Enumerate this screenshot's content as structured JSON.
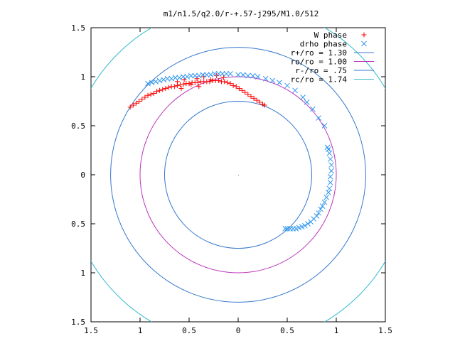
{
  "chart_data": {
    "type": "scatter",
    "title": "m1/n1.5/q2.0/r-+.57-j295/M1.0/512",
    "xlabel": "",
    "ylabel": "",
    "xlim": [
      -1.5,
      1.5
    ],
    "ylim": [
      -1.5,
      1.5
    ],
    "x_ticks": [
      -1.5,
      -1,
      -0.5,
      0,
      0.5,
      1,
      1.5
    ],
    "y_ticks": [
      -1.5,
      -1,
      -0.5,
      0,
      0.5,
      1,
      1.5
    ],
    "x_tick_labels": [
      "1.5",
      "1",
      "0.5",
      "0",
      "0.5",
      "1",
      "1.5"
    ],
    "y_tick_labels": [
      "1.5",
      "1",
      "0.5",
      "0",
      "0.5",
      "1",
      "1.5"
    ],
    "grid": false,
    "legend_position": "top-right",
    "circles": [
      {
        "label": "r+/ro = 1.30",
        "radius": 1.3,
        "color": "#3377cc"
      },
      {
        "label": "ro/ro = 1.00",
        "radius": 1.0,
        "color": "#bb33bb"
      },
      {
        "label": "r-/ro = .75",
        "radius": 0.75,
        "color": "#3377cc"
      },
      {
        "label": "rc/ro = 1.74",
        "radius": 1.74,
        "color": "#33bbcc"
      }
    ],
    "series": [
      {
        "name": "W phase",
        "marker": "+",
        "color": "#ff0000",
        "points": [
          [
            -1.1,
            0.69
          ],
          [
            -1.07,
            0.71
          ],
          [
            -1.04,
            0.73
          ],
          [
            -1.01,
            0.75
          ],
          [
            -0.98,
            0.77
          ],
          [
            -0.95,
            0.79
          ],
          [
            -0.92,
            0.81
          ],
          [
            -0.89,
            0.82
          ],
          [
            -0.86,
            0.83
          ],
          [
            -0.83,
            0.85
          ],
          [
            -0.8,
            0.86
          ],
          [
            -0.77,
            0.87
          ],
          [
            -0.74,
            0.88
          ],
          [
            -0.71,
            0.89
          ],
          [
            -0.68,
            0.9
          ],
          [
            -0.65,
            0.9
          ],
          [
            -0.62,
            0.91
          ],
          [
            -0.59,
            0.92
          ],
          [
            -0.56,
            0.92
          ],
          [
            -0.53,
            0.93
          ],
          [
            -0.5,
            0.93
          ],
          [
            -0.47,
            0.94
          ],
          [
            -0.44,
            0.94
          ],
          [
            -0.41,
            0.94
          ],
          [
            -0.38,
            0.95
          ],
          [
            -0.35,
            0.95
          ],
          [
            -0.32,
            0.95
          ],
          [
            -0.29,
            0.95
          ],
          [
            -0.26,
            0.96
          ],
          [
            -0.23,
            0.96
          ],
          [
            -0.2,
            0.96
          ],
          [
            -0.17,
            0.95
          ],
          [
            -0.14,
            0.95
          ],
          [
            -0.11,
            0.94
          ],
          [
            -0.08,
            0.93
          ],
          [
            -0.05,
            0.91
          ],
          [
            -0.02,
            0.9
          ],
          [
            0.01,
            0.88
          ],
          [
            0.04,
            0.86
          ],
          [
            0.07,
            0.84
          ],
          [
            0.1,
            0.82
          ],
          [
            0.13,
            0.8
          ],
          [
            0.16,
            0.78
          ],
          [
            0.19,
            0.76
          ],
          [
            0.22,
            0.74
          ],
          [
            0.25,
            0.72
          ],
          [
            0.27,
            0.71
          ],
          [
            -0.62,
            0.95
          ],
          [
            -0.55,
            0.97
          ],
          [
            -0.48,
            0.92
          ],
          [
            -0.42,
            0.98
          ],
          [
            -0.35,
            1.0
          ],
          [
            -0.28,
            0.97
          ],
          [
            -0.22,
            1.01
          ],
          [
            -0.15,
            0.99
          ],
          [
            -0.4,
            0.9
          ],
          [
            -0.58,
            0.88
          ]
        ]
      },
      {
        "name": "drho phase",
        "marker": "x",
        "color": "#3399ee",
        "points": [
          [
            -0.92,
            0.93
          ],
          [
            -0.88,
            0.94
          ],
          [
            -0.84,
            0.95
          ],
          [
            -0.8,
            0.96
          ],
          [
            -0.76,
            0.97
          ],
          [
            -0.72,
            0.98
          ],
          [
            -0.68,
            0.98
          ],
          [
            -0.64,
            0.99
          ],
          [
            -0.6,
            0.99
          ],
          [
            -0.56,
            1.0
          ],
          [
            -0.52,
            1.0
          ],
          [
            -0.48,
            1.01
          ],
          [
            -0.44,
            1.01
          ],
          [
            -0.4,
            1.01
          ],
          [
            -0.36,
            1.02
          ],
          [
            -0.32,
            1.02
          ],
          [
            -0.28,
            1.02
          ],
          [
            -0.24,
            1.03
          ],
          [
            -0.2,
            1.03
          ],
          [
            -0.16,
            1.03
          ],
          [
            -0.12,
            1.03
          ],
          [
            -0.08,
            1.03
          ],
          [
            0.0,
            1.02
          ],
          [
            0.05,
            1.02
          ],
          [
            0.1,
            1.01
          ],
          [
            0.15,
            1.01
          ],
          [
            0.2,
            1.0
          ],
          [
            0.28,
            0.98
          ],
          [
            0.35,
            0.96
          ],
          [
            0.42,
            0.94
          ],
          [
            0.5,
            0.91
          ],
          [
            0.58,
            0.86
          ],
          [
            0.66,
            0.79
          ],
          [
            0.7,
            0.74
          ],
          [
            0.76,
            0.67
          ],
          [
            0.82,
            0.58
          ],
          [
            0.88,
            0.5
          ],
          [
            0.91,
            0.28
          ],
          [
            0.92,
            0.26
          ],
          [
            0.93,
            0.22
          ],
          [
            0.94,
            0.16
          ],
          [
            0.95,
            0.1
          ],
          [
            0.95,
            0.04
          ],
          [
            0.94,
            -0.02
          ],
          [
            0.94,
            -0.08
          ],
          [
            0.93,
            -0.14
          ],
          [
            0.92,
            -0.18
          ],
          [
            0.9,
            -0.23
          ],
          [
            0.88,
            -0.28
          ],
          [
            0.86,
            -0.32
          ],
          [
            0.84,
            -0.35
          ],
          [
            0.82,
            -0.39
          ],
          [
            0.8,
            -0.42
          ],
          [
            0.77,
            -0.45
          ],
          [
            0.74,
            -0.48
          ],
          [
            0.71,
            -0.5
          ],
          [
            0.68,
            -0.52
          ],
          [
            0.65,
            -0.53
          ],
          [
            0.62,
            -0.54
          ],
          [
            0.59,
            -0.55
          ],
          [
            0.56,
            -0.55
          ],
          [
            0.53,
            -0.55
          ],
          [
            0.5,
            -0.55
          ],
          [
            0.48,
            -0.55
          ]
        ]
      }
    ]
  }
}
